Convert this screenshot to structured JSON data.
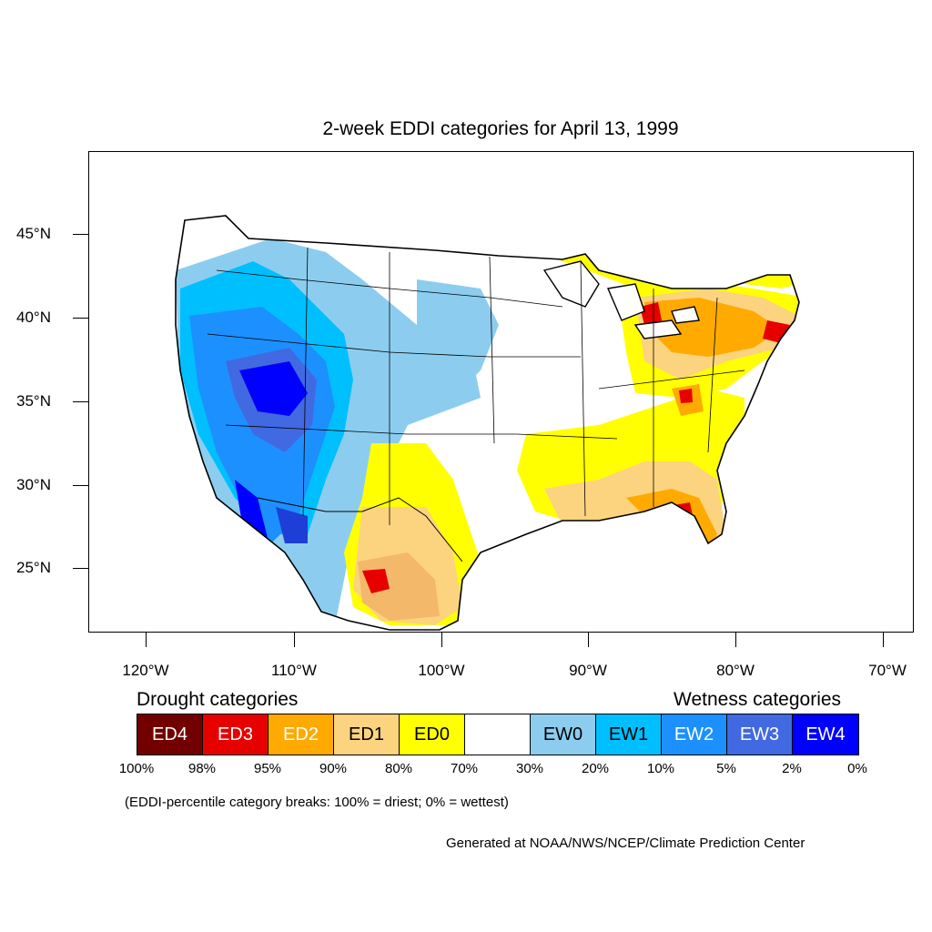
{
  "title": "2-week EDDI categories for April 13, 1999",
  "axes": {
    "lat_labels": [
      "45°N",
      "40°N",
      "35°N",
      "30°N",
      "25°N"
    ],
    "lon_labels": [
      "120°W",
      "110°W",
      "100°W",
      "90°W",
      "80°W",
      "70°W"
    ]
  },
  "legend": {
    "drought_heading": "Drought categories",
    "wetness_heading": "Wetness categories",
    "categories": [
      {
        "label": "ED4",
        "color": "#730000",
        "text_color": "#ffffff"
      },
      {
        "label": "ED3",
        "color": "#e60000",
        "text_color": "#ffffff"
      },
      {
        "label": "ED2",
        "color": "#ffaa00",
        "text_color": "#ffffff"
      },
      {
        "label": "ED1",
        "color": "#fcd37f",
        "text_color": "#000000"
      },
      {
        "label": "ED0",
        "color": "#ffff00",
        "text_color": "#000000"
      },
      {
        "label": "",
        "color": "#ffffff",
        "text_color": "#000000"
      },
      {
        "label": "EW0",
        "color": "#8ccdef",
        "text_color": "#000000"
      },
      {
        "label": "EW1",
        "color": "#00bfff",
        "text_color": "#000000"
      },
      {
        "label": "EW2",
        "color": "#1d90ff",
        "text_color": "#ffffff"
      },
      {
        "label": "EW3",
        "color": "#4169e1",
        "text_color": "#ffffff"
      },
      {
        "label": "EW4",
        "color": "#0000ff",
        "text_color": "#ffffff"
      }
    ],
    "breaks": [
      "100%",
      "98%",
      "95%",
      "90%",
      "80%",
      "70%",
      "30%",
      "20%",
      "10%",
      "5%",
      "2%",
      "0%"
    ]
  },
  "note": "(EDDI-percentile category breaks: 100% = driest; 0% = wettest)",
  "credit": "Generated at NOAA/NWS/NCEP/Climate Prediction Center"
}
